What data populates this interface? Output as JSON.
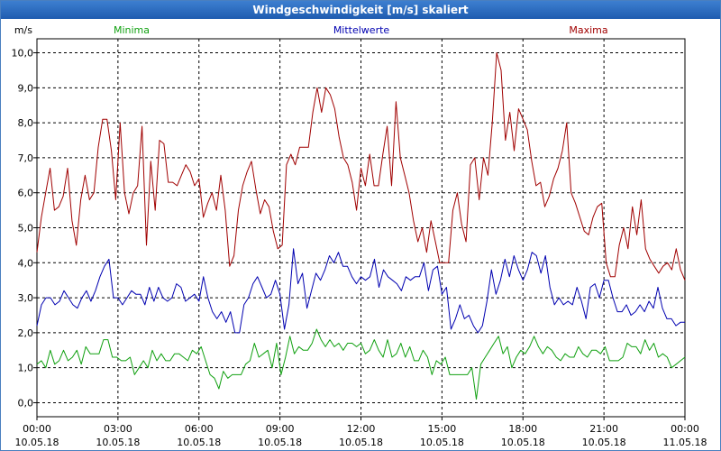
{
  "window": {
    "title": "Windgeschwindigkeit [m/s] skaliert"
  },
  "chart_data": {
    "type": "line",
    "title": "Windgeschwindigkeit [m/s] skaliert",
    "ylabel": "m/s",
    "ylim": [
      -0.4,
      10.4
    ],
    "xlim": [
      0,
      24
    ],
    "grid": true,
    "legend_position": "top",
    "y_ticks": [
      "0,0",
      "1,0",
      "2,0",
      "3,0",
      "4,0",
      "5,0",
      "6,0",
      "7,0",
      "8,0",
      "9,0",
      "10,0"
    ],
    "x_ticks": [
      {
        "time": "00:00",
        "date": "10.05.18"
      },
      {
        "time": "03:00",
        "date": "10.05.18"
      },
      {
        "time": "06:00",
        "date": "10.05.18"
      },
      {
        "time": "09:00",
        "date": "10.05.18"
      },
      {
        "time": "12:00",
        "date": "10.05.18"
      },
      {
        "time": "15:00",
        "date": "10.05.18"
      },
      {
        "time": "18:00",
        "date": "10.05.18"
      },
      {
        "time": "21:00",
        "date": "10.05.18"
      },
      {
        "time": "00:00",
        "date": "11.05.18"
      }
    ],
    "series": [
      {
        "name": "Maxima",
        "color": "#a00000",
        "values": [
          4.3,
          5.3,
          6.0,
          6.7,
          5.5,
          5.6,
          5.9,
          6.7,
          5.2,
          4.5,
          5.8,
          6.5,
          5.8,
          6.0,
          7.3,
          8.1,
          8.1,
          7.2,
          5.8,
          8.0,
          6.0,
          5.4,
          6.0,
          6.2,
          7.9,
          4.5,
          6.9,
          5.5,
          7.5,
          7.4,
          6.3,
          6.3,
          6.2,
          6.5,
          6.8,
          6.6,
          6.2,
          6.4,
          5.3,
          5.7,
          6.0,
          5.5,
          6.5,
          5.5,
          3.9,
          4.2,
          5.5,
          6.2,
          6.6,
          6.9,
          6.1,
          5.4,
          5.8,
          5.6,
          4.9,
          4.4,
          4.5,
          6.8,
          7.1,
          6.8,
          7.3,
          7.3,
          7.3,
          8.3,
          9.0,
          8.3,
          9.0,
          8.8,
          8.4,
          7.6,
          7.0,
          6.8,
          6.3,
          5.5,
          6.7,
          6.2,
          7.1,
          6.2,
          6.2,
          7.1,
          7.9,
          6.2,
          8.6,
          7.0,
          6.5,
          6.0,
          5.2,
          4.6,
          5.0,
          4.3,
          5.2,
          4.6,
          4.0,
          4.0,
          4.0,
          5.5,
          6.0,
          5.1,
          4.6,
          6.8,
          7.0,
          5.8,
          7.0,
          6.5,
          8.0,
          10.0,
          9.5,
          7.5,
          8.3,
          7.2,
          8.4,
          8.1,
          7.8,
          6.9,
          6.2,
          6.3,
          5.6,
          5.9,
          6.4,
          6.7,
          7.2,
          8.0,
          6.0,
          5.7,
          5.3,
          4.9,
          4.8,
          5.3,
          5.6,
          5.7,
          4.0,
          3.6,
          3.6,
          4.5,
          5.0,
          4.4,
          5.6,
          4.8,
          5.8,
          4.4,
          4.1,
          3.9,
          3.7,
          3.9,
          4.0,
          3.8,
          4.4,
          3.8,
          3.5
        ]
      },
      {
        "name": "Mittelwerte",
        "color": "#0000b0",
        "values": [
          2.2,
          2.8,
          3.0,
          3.0,
          2.8,
          2.9,
          3.2,
          3.0,
          2.8,
          2.7,
          3.0,
          3.2,
          2.9,
          3.2,
          3.6,
          3.9,
          4.1,
          3.0,
          3.0,
          2.8,
          3.0,
          3.2,
          3.1,
          3.1,
          2.8,
          3.3,
          2.9,
          3.3,
          3.0,
          2.9,
          3.0,
          3.4,
          3.3,
          2.9,
          3.0,
          3.1,
          2.9,
          3.6,
          3.0,
          2.6,
          2.4,
          2.6,
          2.3,
          2.6,
          2.0,
          2.0,
          2.8,
          3.0,
          3.4,
          3.6,
          3.3,
          3.0,
          3.1,
          3.5,
          3.1,
          2.1,
          2.8,
          4.4,
          3.4,
          3.7,
          2.7,
          3.2,
          3.7,
          3.5,
          3.8,
          4.2,
          4.0,
          4.3,
          3.9,
          3.9,
          3.6,
          3.4,
          3.6,
          3.5,
          3.6,
          4.1,
          3.3,
          3.8,
          3.6,
          3.5,
          3.4,
          3.2,
          3.6,
          3.5,
          3.6,
          3.6,
          4.0,
          3.2,
          3.8,
          3.9,
          3.1,
          3.3,
          2.1,
          2.4,
          2.8,
          2.4,
          2.5,
          2.2,
          2.0,
          2.2,
          2.9,
          3.8,
          3.1,
          3.5,
          4.1,
          3.6,
          4.2,
          3.8,
          3.5,
          3.8,
          4.3,
          4.2,
          3.7,
          4.2,
          3.3,
          2.8,
          3.0,
          2.8,
          2.9,
          2.8,
          3.3,
          2.9,
          2.4,
          3.3,
          3.4,
          3.0,
          3.5,
          3.5,
          3.0,
          2.6,
          2.6,
          2.8,
          2.5,
          2.6,
          2.8,
          2.6,
          2.9,
          2.7,
          3.3,
          2.7,
          2.4,
          2.4,
          2.2,
          2.3,
          2.3
        ]
      },
      {
        "name": "Minima",
        "color": "#10a010",
        "values": [
          1.1,
          1.2,
          1.0,
          1.5,
          1.1,
          1.2,
          1.5,
          1.2,
          1.3,
          1.5,
          1.1,
          1.6,
          1.4,
          1.4,
          1.4,
          1.8,
          1.8,
          1.3,
          1.3,
          1.2,
          1.2,
          1.3,
          0.8,
          1.0,
          1.2,
          1.0,
          1.5,
          1.2,
          1.4,
          1.2,
          1.2,
          1.4,
          1.4,
          1.3,
          1.2,
          1.5,
          1.4,
          1.6,
          1.2,
          0.8,
          0.7,
          0.4,
          0.9,
          0.7,
          0.8,
          0.8,
          0.8,
          1.1,
          1.2,
          1.7,
          1.3,
          1.4,
          1.5,
          1.0,
          1.7,
          0.8,
          1.3,
          1.9,
          1.4,
          1.6,
          1.5,
          1.5,
          1.7,
          2.1,
          1.8,
          1.6,
          1.8,
          1.6,
          1.7,
          1.5,
          1.7,
          1.7,
          1.6,
          1.7,
          1.4,
          1.5,
          1.8,
          1.5,
          1.3,
          1.8,
          1.3,
          1.4,
          1.7,
          1.3,
          1.6,
          1.2,
          1.2,
          1.5,
          1.3,
          0.8,
          1.2,
          1.1,
          1.3,
          0.8,
          0.8,
          0.8,
          0.8,
          0.8,
          1.0,
          0.1,
          1.1,
          1.3,
          1.5,
          1.7,
          1.9,
          1.4,
          1.6,
          1.0,
          1.3,
          1.5,
          1.4,
          1.6,
          1.9,
          1.6,
          1.4,
          1.6,
          1.5,
          1.3,
          1.2,
          1.4,
          1.3,
          1.3,
          1.6,
          1.4,
          1.3,
          1.5,
          1.5,
          1.4,
          1.6,
          1.2,
          1.2,
          1.2,
          1.3,
          1.7,
          1.6,
          1.6,
          1.4,
          1.8,
          1.5,
          1.7,
          1.3,
          1.4,
          1.3,
          1.0,
          1.1,
          1.2,
          1.3
        ]
      }
    ]
  }
}
